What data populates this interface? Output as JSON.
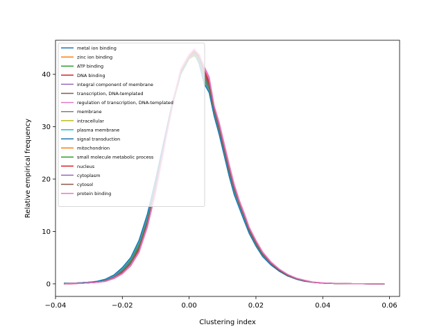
{
  "chart_data": {
    "type": "line",
    "title": "",
    "xlabel": "Clustering index",
    "ylabel": "Relative empirical frequency",
    "xlim": [
      -0.04,
      0.063
    ],
    "ylim": [
      -2.4,
      46.5
    ],
    "xticks": [
      -0.04,
      -0.02,
      0.0,
      0.02,
      0.04,
      0.06
    ],
    "xtick_labels": [
      "−0.04",
      "−0.02",
      "0.00",
      "0.02",
      "0.04",
      "0.06"
    ],
    "yticks": [
      0,
      10,
      20,
      30,
      40
    ],
    "ytick_labels": [
      "0",
      "10",
      "20",
      "30",
      "40"
    ],
    "grid": false,
    "legend_position": "upper-left",
    "x": [
      -0.0375,
      -0.035,
      -0.0325,
      -0.03,
      -0.0275,
      -0.025,
      -0.0225,
      -0.02,
      -0.0175,
      -0.015,
      -0.0125,
      -0.01,
      -0.0075,
      -0.005,
      -0.0025,
      0.0,
      0.0015,
      0.003,
      0.0045,
      0.006,
      0.0075,
      0.009,
      0.0105,
      0.012,
      0.0135,
      0.015,
      0.0165,
      0.018,
      0.02,
      0.022,
      0.0245,
      0.027,
      0.0295,
      0.032,
      0.0345,
      0.037,
      0.04,
      0.043,
      0.046,
      0.049,
      0.052,
      0.055,
      0.0585
    ],
    "series": [
      {
        "name": "metal ion binding",
        "color": "#1f77b4",
        "values": [
          0.1,
          0.1,
          0.2,
          0.3,
          0.4,
          0.8,
          1.5,
          2.8,
          4.6,
          7.8,
          12.8,
          19.5,
          27.0,
          34.5,
          40.2,
          43.3,
          44.0,
          42.5,
          38.5,
          37.0,
          32.5,
          29.0,
          25.0,
          21.0,
          17.5,
          15.0,
          12.5,
          10.0,
          7.5,
          5.5,
          3.8,
          2.6,
          1.6,
          1.0,
          0.6,
          0.3,
          0.15,
          0.1,
          0.05,
          0.02,
          0.01,
          0.0,
          0.0
        ]
      },
      {
        "name": "zinc ion binding",
        "color": "#ff7f0e",
        "values": [
          0.0,
          0.1,
          0.1,
          0.2,
          0.3,
          0.5,
          1.2,
          2.2,
          3.8,
          6.5,
          11.5,
          18.5,
          26.5,
          34.0,
          40.5,
          43.0,
          43.5,
          43.0,
          40.0,
          37.5,
          33.0,
          29.5,
          25.5,
          21.5,
          18.0,
          15.2,
          12.8,
          10.2,
          7.8,
          5.7,
          3.9,
          2.6,
          1.6,
          1.0,
          0.6,
          0.3,
          0.15,
          0.08,
          0.04,
          0.02,
          0.01,
          0.0,
          0.0
        ]
      },
      {
        "name": "ATP binding",
        "color": "#2ca02c",
        "values": [
          0.1,
          0.1,
          0.2,
          0.3,
          0.4,
          0.7,
          1.4,
          2.6,
          4.4,
          7.4,
          12.3,
          19.0,
          26.8,
          34.2,
          40.0,
          43.0,
          43.8,
          42.8,
          39.5,
          37.3,
          32.8,
          29.3,
          25.2,
          21.2,
          17.7,
          15.0,
          12.5,
          10.0,
          7.5,
          5.5,
          3.8,
          2.5,
          1.6,
          1.0,
          0.6,
          0.3,
          0.15,
          0.08,
          0.04,
          0.02,
          0.01,
          0.0,
          0.0
        ]
      },
      {
        "name": "DNA binding",
        "color": "#d62728",
        "values": [
          0.0,
          0.0,
          0.1,
          0.2,
          0.3,
          0.5,
          1.1,
          2.0,
          3.5,
          6.2,
          11.0,
          17.8,
          26.0,
          34.0,
          40.8,
          43.5,
          44.5,
          43.5,
          41.0,
          38.5,
          33.5,
          30.0,
          26.0,
          22.0,
          18.5,
          15.5,
          13.0,
          10.5,
          8.0,
          5.9,
          4.0,
          2.7,
          1.7,
          1.1,
          0.6,
          0.3,
          0.15,
          0.08,
          0.04,
          0.02,
          0.01,
          0.0,
          0.0
        ]
      },
      {
        "name": "integral component of membrane",
        "color": "#9467bd",
        "values": [
          0.1,
          0.1,
          0.2,
          0.3,
          0.4,
          0.8,
          1.6,
          3.0,
          4.9,
          8.1,
          13.1,
          19.8,
          27.2,
          34.6,
          40.1,
          43.2,
          43.9,
          42.3,
          38.8,
          36.8,
          32.3,
          28.8,
          24.8,
          20.8,
          17.3,
          14.8,
          12.3,
          9.8,
          7.4,
          5.4,
          3.7,
          2.5,
          1.6,
          1.0,
          0.6,
          0.3,
          0.15,
          0.08,
          0.04,
          0.02,
          0.01,
          0.0,
          0.0
        ]
      },
      {
        "name": "transcription, DNA-templated",
        "color": "#8c564b",
        "values": [
          0.0,
          0.1,
          0.1,
          0.2,
          0.3,
          0.5,
          1.1,
          2.1,
          3.6,
          6.3,
          11.2,
          18.0,
          26.2,
          34.0,
          40.7,
          43.4,
          44.6,
          43.6,
          41.2,
          38.8,
          33.8,
          30.3,
          26.3,
          22.3,
          18.7,
          15.7,
          13.2,
          10.6,
          8.1,
          6.0,
          4.1,
          2.8,
          1.7,
          1.1,
          0.6,
          0.3,
          0.15,
          0.08,
          0.04,
          0.02,
          0.01,
          0.0,
          0.0
        ]
      },
      {
        "name": "regulation of transcription, DNA-templated",
        "color": "#e377c2",
        "values": [
          0.0,
          0.0,
          0.1,
          0.2,
          0.3,
          0.5,
          1.0,
          1.9,
          3.4,
          6.0,
          10.8,
          17.5,
          25.8,
          34.5,
          41.0,
          43.8,
          44.8,
          43.8,
          41.5,
          39.5,
          34.0,
          30.8,
          26.8,
          22.8,
          19.0,
          16.0,
          13.5,
          10.8,
          8.3,
          6.1,
          4.2,
          2.8,
          1.8,
          1.1,
          0.7,
          0.35,
          0.18,
          0.09,
          0.05,
          0.02,
          0.01,
          0.0,
          0.0
        ]
      },
      {
        "name": "membrane",
        "color": "#7f7f7f",
        "values": [
          0.1,
          0.1,
          0.2,
          0.3,
          0.4,
          0.7,
          1.5,
          2.8,
          4.6,
          7.7,
          12.6,
          19.3,
          26.9,
          34.4,
          40.1,
          43.2,
          43.9,
          42.6,
          39.0,
          37.0,
          32.6,
          29.1,
          25.1,
          21.1,
          17.6,
          15.0,
          12.5,
          10.0,
          7.5,
          5.5,
          3.8,
          2.5,
          1.6,
          1.0,
          0.6,
          0.3,
          0.15,
          0.08,
          0.04,
          0.02,
          0.01,
          0.0,
          0.0
        ]
      },
      {
        "name": "intracellular",
        "color": "#bcbd22",
        "values": [
          0.0,
          0.1,
          0.1,
          0.2,
          0.3,
          0.6,
          1.3,
          2.4,
          4.1,
          7.0,
          11.9,
          18.7,
          26.5,
          34.1,
          40.3,
          43.1,
          43.7,
          43.0,
          39.8,
          37.6,
          33.0,
          29.6,
          25.6,
          21.6,
          18.0,
          15.3,
          12.8,
          10.2,
          7.7,
          5.7,
          3.9,
          2.6,
          1.6,
          1.0,
          0.6,
          0.3,
          0.15,
          0.08,
          0.04,
          0.02,
          0.01,
          0.0,
          0.0
        ]
      },
      {
        "name": "plasma membrane",
        "color": "#17becf",
        "values": [
          0.1,
          0.1,
          0.2,
          0.3,
          0.4,
          0.8,
          1.6,
          2.9,
          4.8,
          8.0,
          13.0,
          19.7,
          27.1,
          34.5,
          40.0,
          43.1,
          43.8,
          42.2,
          38.6,
          36.6,
          32.1,
          28.6,
          24.6,
          20.6,
          17.2,
          14.7,
          12.2,
          9.7,
          7.3,
          5.3,
          3.7,
          2.4,
          1.5,
          1.0,
          0.6,
          0.3,
          0.15,
          0.08,
          0.04,
          0.02,
          0.01,
          0.0,
          0.0
        ]
      },
      {
        "name": "signal transduction",
        "color": "#1f77b4",
        "values": [
          0.1,
          0.1,
          0.2,
          0.3,
          0.5,
          0.9,
          1.7,
          3.1,
          5.0,
          8.3,
          13.3,
          20.0,
          27.4,
          34.7,
          40.3,
          43.4,
          44.2,
          42.0,
          38.2,
          36.5,
          32.0,
          28.5,
          24.5,
          20.5,
          17.0,
          14.5,
          12.0,
          9.6,
          7.2,
          5.2,
          3.6,
          2.4,
          1.5,
          0.9,
          0.5,
          0.3,
          0.15,
          0.08,
          0.04,
          0.02,
          0.01,
          0.0,
          0.0
        ]
      },
      {
        "name": "mitochondrion",
        "color": "#ff7f0e",
        "values": [
          0.0,
          0.1,
          0.1,
          0.2,
          0.3,
          0.5,
          1.2,
          2.3,
          3.9,
          6.7,
          11.6,
          18.4,
          26.4,
          34.3,
          40.5,
          43.2,
          43.6,
          43.2,
          40.2,
          37.8,
          33.2,
          29.7,
          25.7,
          21.7,
          18.1,
          15.4,
          12.9,
          10.3,
          7.9,
          5.8,
          4.0,
          2.7,
          1.7,
          1.0,
          0.6,
          0.3,
          0.15,
          0.08,
          0.04,
          0.02,
          0.01,
          0.0,
          0.0
        ]
      },
      {
        "name": "small molecule metabolic process",
        "color": "#2ca02c",
        "values": [
          0.0,
          0.1,
          0.1,
          0.2,
          0.3,
          0.6,
          1.3,
          2.5,
          4.2,
          7.1,
          12.0,
          18.8,
          26.6,
          34.1,
          40.2,
          43.0,
          43.6,
          42.9,
          39.7,
          37.4,
          32.9,
          29.4,
          25.4,
          21.4,
          17.9,
          15.2,
          12.7,
          10.1,
          7.6,
          5.6,
          3.9,
          2.6,
          1.6,
          1.0,
          0.6,
          0.3,
          0.15,
          0.08,
          0.04,
          0.02,
          0.01,
          0.0,
          0.0
        ]
      },
      {
        "name": "nucleus",
        "color": "#d62728",
        "values": [
          0.0,
          0.1,
          0.1,
          0.2,
          0.3,
          0.5,
          1.1,
          2.1,
          3.7,
          6.4,
          11.3,
          18.2,
          26.3,
          34.1,
          40.6,
          43.4,
          44.4,
          43.4,
          40.8,
          38.4,
          33.6,
          30.1,
          26.1,
          22.1,
          18.6,
          15.6,
          13.1,
          10.5,
          8.0,
          5.9,
          4.0,
          2.7,
          1.7,
          1.1,
          0.6,
          0.3,
          0.15,
          0.08,
          0.04,
          0.02,
          0.01,
          0.0,
          0.0
        ]
      },
      {
        "name": "cytoplasm",
        "color": "#9467bd",
        "values": [
          0.0,
          0.1,
          0.1,
          0.2,
          0.3,
          0.6,
          1.3,
          2.4,
          4.0,
          6.9,
          11.8,
          18.6,
          26.5,
          34.2,
          40.4,
          43.2,
          44.0,
          43.1,
          40.0,
          37.7,
          33.1,
          29.6,
          25.6,
          21.6,
          18.0,
          15.3,
          12.8,
          10.2,
          7.7,
          5.7,
          3.9,
          2.6,
          1.6,
          1.0,
          0.6,
          0.3,
          0.15,
          0.08,
          0.04,
          0.02,
          0.01,
          0.0,
          0.0
        ]
      },
      {
        "name": "cytosol",
        "color": "#8c564b",
        "values": [
          0.0,
          0.1,
          0.1,
          0.2,
          0.3,
          0.6,
          1.2,
          2.3,
          3.9,
          6.8,
          11.7,
          18.5,
          26.4,
          34.2,
          40.5,
          43.3,
          44.1,
          43.3,
          40.3,
          37.9,
          33.3,
          29.8,
          25.8,
          21.8,
          18.2,
          15.4,
          12.9,
          10.3,
          7.8,
          5.7,
          3.9,
          2.6,
          1.6,
          1.0,
          0.6,
          0.3,
          0.15,
          0.08,
          0.04,
          0.02,
          0.01,
          0.0,
          0.0
        ]
      },
      {
        "name": "protein binding",
        "color": "#e377c2",
        "values": [
          0.0,
          0.1,
          0.1,
          0.2,
          0.3,
          0.5,
          1.1,
          2.0,
          3.6,
          6.2,
          11.1,
          17.9,
          26.1,
          34.2,
          40.8,
          43.6,
          44.7,
          43.7,
          41.3,
          39.0,
          33.9,
          30.5,
          26.5,
          22.5,
          18.8,
          15.8,
          13.3,
          10.7,
          8.2,
          6.0,
          4.1,
          2.8,
          1.8,
          1.1,
          0.7,
          0.35,
          0.18,
          0.09,
          0.05,
          0.02,
          0.01,
          0.0,
          0.0
        ]
      }
    ]
  }
}
